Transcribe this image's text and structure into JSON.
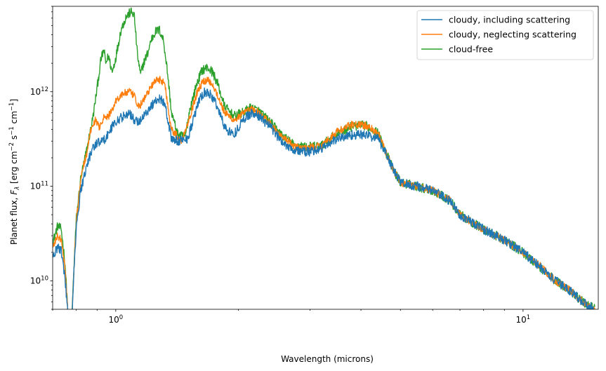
{
  "chart_data": {
    "type": "line",
    "title": "",
    "xlabel": "Wavelength (microns)",
    "ylabel_main": "Planet flux, ",
    "ylabel_sym": "F",
    "ylabel_sub": "λ",
    "ylabel_open": " [erg cm",
    "ylabel_exp1": "−2",
    "ylabel_mid": " s",
    "ylabel_exp2": "−1",
    "ylabel_mid2": " cm",
    "ylabel_exp3": "−1",
    "ylabel_close": "]",
    "xscale": "log",
    "yscale": "log",
    "xlim": [
      0.7,
      15.3
    ],
    "ylim": [
      5000000000.0,
      8000000000000.0
    ],
    "x_ticks": [
      {
        "value": 1,
        "base": "10",
        "exp": "0"
      },
      {
        "value": 10,
        "base": "10",
        "exp": "1"
      }
    ],
    "y_ticks": [
      {
        "value": 10000000000.0,
        "base": "10",
        "exp": "10"
      },
      {
        "value": 100000000000.0,
        "base": "10",
        "exp": "11"
      },
      {
        "value": 1000000000000.0,
        "base": "10",
        "exp": "12"
      }
    ],
    "legend_position": "top-right",
    "grid": false,
    "series": [
      {
        "name": "cloud-free",
        "color": "#2ca02c",
        "noise": 0.05,
        "points": [
          [
            0.7,
            25000000000.0
          ],
          [
            0.72,
            38000000000.0
          ],
          [
            0.735,
            35000000000.0
          ],
          [
            0.75,
            16000000000.0
          ],
          [
            0.765,
            4000000000.0
          ],
          [
            0.78,
            4000000000.0
          ],
          [
            0.79,
            15000000000.0
          ],
          [
            0.8,
            45000000000.0
          ],
          [
            0.82,
            120000000000.0
          ],
          [
            0.85,
            250000000000.0
          ],
          [
            0.88,
            550000000000.0
          ],
          [
            0.9,
            1100000000000.0
          ],
          [
            0.92,
            2200000000000.0
          ],
          [
            0.935,
            2800000000000.0
          ],
          [
            0.945,
            2000000000000.0
          ],
          [
            0.96,
            2400000000000.0
          ],
          [
            0.98,
            1600000000000.0
          ],
          [
            1.0,
            2300000000000.0
          ],
          [
            1.03,
            4500000000000.0
          ],
          [
            1.06,
            6200000000000.0
          ],
          [
            1.09,
            7000000000000.0
          ],
          [
            1.11,
            6500000000000.0
          ],
          [
            1.13,
            2500000000000.0
          ],
          [
            1.15,
            1500000000000.0
          ],
          [
            1.17,
            2000000000000.0
          ],
          [
            1.2,
            2600000000000.0
          ],
          [
            1.22,
            3500000000000.0
          ],
          [
            1.25,
            4300000000000.0
          ],
          [
            1.28,
            4500000000000.0
          ],
          [
            1.31,
            3500000000000.0
          ],
          [
            1.34,
            1600000000000.0
          ],
          [
            1.37,
            600000000000.0
          ],
          [
            1.42,
            350000000000.0
          ],
          [
            1.48,
            330000000000.0
          ],
          [
            1.52,
            650000000000.0
          ],
          [
            1.58,
            1200000000000.0
          ],
          [
            1.63,
            1700000000000.0
          ],
          [
            1.68,
            1800000000000.0
          ],
          [
            1.73,
            1600000000000.0
          ],
          [
            1.78,
            1200000000000.0
          ],
          [
            1.85,
            700000000000.0
          ],
          [
            1.95,
            550000000000.0
          ],
          [
            2.05,
            600000000000.0
          ],
          [
            2.15,
            680000000000.0
          ],
          [
            2.25,
            620000000000.0
          ],
          [
            2.4,
            470000000000.0
          ],
          [
            2.55,
            350000000000.0
          ],
          [
            2.75,
            270000000000.0
          ],
          [
            2.95,
            260000000000.0
          ],
          [
            3.2,
            270000000000.0
          ],
          [
            3.5,
            360000000000.0
          ],
          [
            3.8,
            430000000000.0
          ],
          [
            4.1,
            440000000000.0
          ],
          [
            4.4,
            370000000000.0
          ],
          [
            4.6,
            230000000000.0
          ],
          [
            4.8,
            150000000000.0
          ],
          [
            5.0,
            110000000000.0
          ],
          [
            5.5,
            100000000000.0
          ],
          [
            6.0,
            90000000000.0
          ],
          [
            6.6,
            72000000000.0
          ],
          [
            7.0,
            50000000000.0
          ],
          [
            8.0,
            35000000000.0
          ],
          [
            9.0,
            27000000000.0
          ],
          [
            10.0,
            20000000000.0
          ],
          [
            11.0,
            14000000000.0
          ],
          [
            12.0,
            10000000000.0
          ],
          [
            13.0,
            8000000000.0
          ],
          [
            14.0,
            6000000000.0
          ],
          [
            15.0,
            5000000000.0
          ]
        ]
      },
      {
        "name": "cloudy, neglecting scattering",
        "color": "#ff7f0e",
        "noise": 0.04,
        "points": [
          [
            0.7,
            22000000000.0
          ],
          [
            0.72,
            30000000000.0
          ],
          [
            0.735,
            27000000000.0
          ],
          [
            0.75,
            14000000000.0
          ],
          [
            0.765,
            4000000000.0
          ],
          [
            0.78,
            4000000000.0
          ],
          [
            0.79,
            14000000000.0
          ],
          [
            0.8,
            40000000000.0
          ],
          [
            0.82,
            120000000000.0
          ],
          [
            0.85,
            230000000000.0
          ],
          [
            0.87,
            400000000000.0
          ],
          [
            0.89,
            500000000000.0
          ],
          [
            0.91,
            420000000000.0
          ],
          [
            0.93,
            520000000000.0
          ],
          [
            0.96,
            550000000000.0
          ],
          [
            0.98,
            650000000000.0
          ],
          [
            1.0,
            800000000000.0
          ],
          [
            1.04,
            950000000000.0
          ],
          [
            1.08,
            1000000000000.0
          ],
          [
            1.11,
            900000000000.0
          ],
          [
            1.13,
            700000000000.0
          ],
          [
            1.16,
            750000000000.0
          ],
          [
            1.2,
            1000000000000.0
          ],
          [
            1.25,
            1300000000000.0
          ],
          [
            1.29,
            1350000000000.0
          ],
          [
            1.32,
            1200000000000.0
          ],
          [
            1.34,
            750000000000.0
          ],
          [
            1.37,
            400000000000.0
          ],
          [
            1.45,
            300000000000.0
          ],
          [
            1.52,
            550000000000.0
          ],
          [
            1.58,
            950000000000.0
          ],
          [
            1.63,
            1250000000000.0
          ],
          [
            1.68,
            1350000000000.0
          ],
          [
            1.73,
            1200000000000.0
          ],
          [
            1.78,
            900000000000.0
          ],
          [
            1.85,
            600000000000.0
          ],
          [
            1.95,
            500000000000.0
          ],
          [
            2.05,
            580000000000.0
          ],
          [
            2.15,
            650000000000.0
          ],
          [
            2.25,
            600000000000.0
          ],
          [
            2.4,
            450000000000.0
          ],
          [
            2.55,
            340000000000.0
          ],
          [
            2.75,
            260000000000.0
          ],
          [
            2.95,
            255000000000.0
          ],
          [
            3.2,
            270000000000.0
          ],
          [
            3.5,
            380000000000.0
          ],
          [
            3.8,
            450000000000.0
          ],
          [
            4.1,
            440000000000.0
          ],
          [
            4.4,
            370000000000.0
          ],
          [
            4.6,
            230000000000.0
          ],
          [
            4.8,
            150000000000.0
          ],
          [
            5.0,
            110000000000.0
          ],
          [
            5.5,
            100000000000.0
          ],
          [
            6.0,
            90000000000.0
          ],
          [
            6.6,
            72000000000.0
          ],
          [
            7.0,
            50000000000.0
          ],
          [
            8.0,
            35000000000.0
          ],
          [
            9.0,
            27000000000.0
          ],
          [
            10.0,
            20000000000.0
          ],
          [
            11.0,
            14500000000.0
          ],
          [
            12.0,
            10000000000.0
          ],
          [
            13.0,
            8000000000.0
          ],
          [
            14.0,
            6000000000.0
          ],
          [
            15.0,
            5000000000.0
          ]
        ]
      },
      {
        "name": "cloudy, including scattering",
        "color": "#1f77b4",
        "noise": 0.05,
        "points": [
          [
            0.7,
            18000000000.0
          ],
          [
            0.72,
            23000000000.0
          ],
          [
            0.735,
            21000000000.0
          ],
          [
            0.75,
            11000000000.0
          ],
          [
            0.765,
            4000000000.0
          ],
          [
            0.78,
            4000000000.0
          ],
          [
            0.79,
            13000000000.0
          ],
          [
            0.8,
            35000000000.0
          ],
          [
            0.82,
            90000000000.0
          ],
          [
            0.85,
            170000000000.0
          ],
          [
            0.88,
            260000000000.0
          ],
          [
            0.9,
            290000000000.0
          ],
          [
            0.93,
            300000000000.0
          ],
          [
            0.96,
            360000000000.0
          ],
          [
            0.98,
            430000000000.0
          ],
          [
            1.0,
            480000000000.0
          ],
          [
            1.05,
            560000000000.0
          ],
          [
            1.08,
            590000000000.0
          ],
          [
            1.11,
            500000000000.0
          ],
          [
            1.14,
            480000000000.0
          ],
          [
            1.18,
            580000000000.0
          ],
          [
            1.22,
            700000000000.0
          ],
          [
            1.26,
            830000000000.0
          ],
          [
            1.29,
            840000000000.0
          ],
          [
            1.32,
            760000000000.0
          ],
          [
            1.34,
            500000000000.0
          ],
          [
            1.37,
            320000000000.0
          ],
          [
            1.42,
            300000000000.0
          ],
          [
            1.5,
            320000000000.0
          ],
          [
            1.55,
            500000000000.0
          ],
          [
            1.6,
            800000000000.0
          ],
          [
            1.65,
            980000000000.0
          ],
          [
            1.7,
            950000000000.0
          ],
          [
            1.75,
            800000000000.0
          ],
          [
            1.8,
            600000000000.0
          ],
          [
            1.85,
            420000000000.0
          ],
          [
            1.95,
            350000000000.0
          ],
          [
            2.05,
            500000000000.0
          ],
          [
            2.15,
            600000000000.0
          ],
          [
            2.25,
            550000000000.0
          ],
          [
            2.4,
            420000000000.0
          ],
          [
            2.55,
            300000000000.0
          ],
          [
            2.75,
            240000000000.0
          ],
          [
            2.95,
            230000000000.0
          ],
          [
            3.2,
            250000000000.0
          ],
          [
            3.5,
            320000000000.0
          ],
          [
            3.8,
            350000000000.0
          ],
          [
            4.1,
            350000000000.0
          ],
          [
            4.4,
            320000000000.0
          ],
          [
            4.6,
            230000000000.0
          ],
          [
            4.8,
            150000000000.0
          ],
          [
            5.0,
            110000000000.0
          ],
          [
            5.5,
            100000000000.0
          ],
          [
            6.0,
            90000000000.0
          ],
          [
            6.6,
            70000000000.0
          ],
          [
            7.0,
            50000000000.0
          ],
          [
            8.0,
            35000000000.0
          ],
          [
            9.0,
            27000000000.0
          ],
          [
            10.0,
            20000000000.0
          ],
          [
            11.0,
            14000000000.0
          ],
          [
            12.0,
            10000000000.0
          ],
          [
            13.0,
            8000000000.0
          ],
          [
            14.0,
            6000000000.0
          ],
          [
            15.0,
            5000000000.0
          ]
        ]
      }
    ],
    "legend_order": [
      "cloudy, including scattering",
      "cloudy, neglecting scattering",
      "cloud-free"
    ]
  }
}
